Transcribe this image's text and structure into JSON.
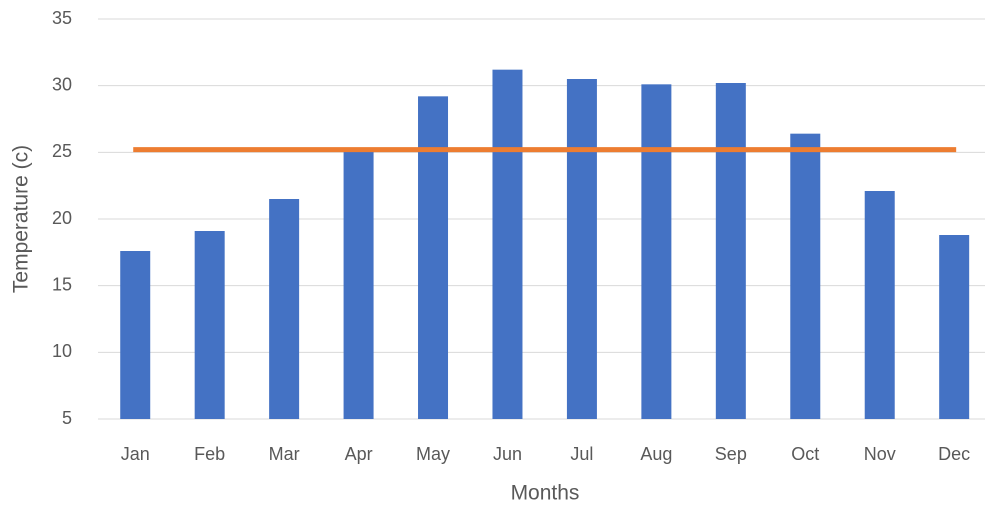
{
  "chart_data": {
    "type": "bar",
    "x_label": "Months",
    "y_label": "Temperature (c)",
    "categories": [
      "Jan",
      "Feb",
      "Mar",
      "Apr",
      "May",
      "Jun",
      "Jul",
      "Aug",
      "Sep",
      "Oct",
      "Nov",
      "Dec"
    ],
    "values": [
      17.6,
      19.1,
      21.5,
      25.1,
      29.2,
      31.2,
      30.5,
      30.1,
      30.2,
      26.4,
      22.1,
      18.8
    ],
    "color": "#4472c4",
    "reference_line": {
      "value": 25.2,
      "color": "#ed7d31"
    },
    "ylim": [
      5,
      35
    ],
    "yticks": [
      5,
      10,
      15,
      20,
      25,
      30,
      35
    ],
    "grid": true
  }
}
